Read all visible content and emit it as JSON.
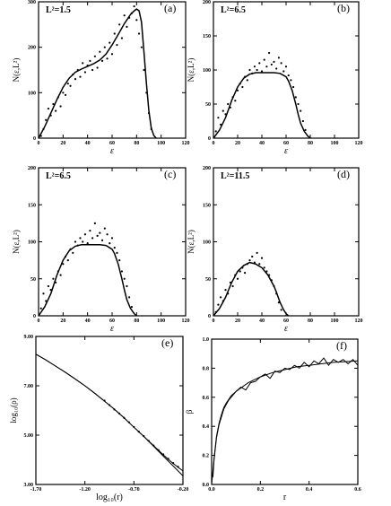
{
  "chart_data": [
    {
      "id": "a",
      "type": "scatter",
      "panel_label": "(a)",
      "annotation": "L²=1.5",
      "xlabel": "ε",
      "ylabel": "N(ε,L²)",
      "xlim": [
        0,
        120
      ],
      "ylim": [
        0,
        300
      ],
      "xticks": [
        0,
        20,
        40,
        60,
        80,
        100,
        120
      ],
      "yticks": [
        0,
        100,
        200,
        300
      ],
      "xtick_labels": [
        "0",
        "20",
        "40",
        "60",
        "80",
        "100",
        "120"
      ],
      "ytick_labels": [
        "0",
        "100",
        "200",
        "300"
      ],
      "series": [
        {
          "kind": "line",
          "x": [
            0,
            5,
            10,
            15,
            20,
            25,
            30,
            35,
            40,
            45,
            50,
            55,
            60,
            65,
            70,
            75,
            78,
            80,
            82,
            84,
            86,
            88,
            90,
            92,
            94,
            96
          ],
          "y": [
            0,
            25,
            55,
            85,
            112,
            132,
            145,
            152,
            158,
            164,
            172,
            185,
            205,
            228,
            252,
            272,
            280,
            284,
            280,
            255,
            190,
            120,
            60,
            22,
            6,
            0
          ]
        },
        {
          "kind": "points",
          "x": [
            2,
            4,
            6,
            8,
            10,
            12,
            14,
            16,
            18,
            20,
            22,
            24,
            26,
            28,
            30,
            32,
            34,
            36,
            38,
            40,
            42,
            44,
            46,
            48,
            50,
            52,
            54,
            56,
            58,
            60,
            62,
            64,
            66,
            68,
            70,
            72,
            74,
            76,
            78,
            80,
            82,
            84,
            86,
            88,
            90,
            92
          ],
          "y": [
            5,
            20,
            40,
            65,
            50,
            75,
            60,
            90,
            70,
            100,
            95,
            120,
            115,
            140,
            130,
            150,
            135,
            165,
            145,
            160,
            170,
            150,
            180,
            155,
            190,
            170,
            200,
            175,
            210,
            185,
            230,
            205,
            250,
            220,
            270,
            245,
            265,
            275,
            290,
            260,
            230,
            200,
            150,
            100,
            55,
            20
          ]
        }
      ]
    },
    {
      "id": "b",
      "type": "scatter",
      "panel_label": "(b)",
      "annotation": "L²=6.5",
      "xlabel": "ε",
      "ylabel": "N(ε,L²)",
      "xlim": [
        0,
        120
      ],
      "ylim": [
        0,
        200
      ],
      "xticks": [
        0,
        20,
        40,
        60,
        80,
        100,
        120
      ],
      "yticks": [
        0,
        50,
        100,
        150,
        200
      ],
      "xtick_labels": [
        "0",
        "20",
        "40",
        "60",
        "80",
        "100",
        "120"
      ],
      "ytick_labels": [
        "0",
        "50",
        "100",
        "150",
        "200"
      ],
      "series": [
        {
          "kind": "line",
          "x": [
            0,
            5,
            10,
            15,
            20,
            25,
            30,
            35,
            40,
            45,
            50,
            55,
            60,
            62,
            65,
            68,
            70,
            72,
            75,
            78,
            80
          ],
          "y": [
            0,
            12,
            30,
            55,
            75,
            88,
            94,
            96,
            96,
            96,
            96,
            95,
            90,
            84,
            70,
            50,
            35,
            22,
            10,
            3,
            0
          ]
        },
        {
          "kind": "points",
          "x": [
            2,
            4,
            6,
            8,
            10,
            12,
            14,
            16,
            18,
            20,
            22,
            24,
            26,
            28,
            30,
            32,
            34,
            36,
            38,
            40,
            42,
            44,
            46,
            48,
            50,
            52,
            54,
            56,
            58,
            60,
            62,
            64,
            66,
            68,
            70,
            72,
            74,
            76
          ],
          "y": [
            10,
            30,
            20,
            40,
            35,
            50,
            45,
            60,
            55,
            70,
            80,
            75,
            90,
            85,
            100,
            95,
            105,
            100,
            110,
            98,
            115,
            105,
            125,
            108,
            112,
            102,
            118,
            110,
            98,
            105,
            92,
            85,
            75,
            60,
            50,
            40,
            25,
            12
          ]
        }
      ]
    },
    {
      "id": "c",
      "type": "scatter",
      "panel_label": "(c)",
      "annotation": "L²=6.5",
      "xlabel": "ε",
      "ylabel": "N(ε,L²)",
      "xlim": [
        0,
        120
      ],
      "ylim": [
        0,
        200
      ],
      "xticks": [
        0,
        20,
        40,
        60,
        80,
        100,
        120
      ],
      "yticks": [
        0,
        50,
        100,
        150,
        200
      ],
      "xtick_labels": [
        "0",
        "20",
        "40",
        "60",
        "80",
        "100",
        "120"
      ],
      "ytick_labels": [
        "0",
        "50",
        "100",
        "150",
        "200"
      ],
      "series": [
        {
          "kind": "line",
          "x": [
            0,
            5,
            10,
            15,
            20,
            25,
            30,
            35,
            40,
            45,
            50,
            55,
            60,
            62,
            65,
            68,
            70,
            72,
            75,
            78,
            80
          ],
          "y": [
            0,
            12,
            30,
            55,
            75,
            88,
            94,
            96,
            96,
            96,
            96,
            95,
            90,
            84,
            70,
            50,
            35,
            22,
            10,
            3,
            0
          ]
        },
        {
          "kind": "points",
          "x": [
            2,
            4,
            6,
            8,
            10,
            12,
            14,
            16,
            18,
            20,
            22,
            24,
            26,
            28,
            30,
            32,
            34,
            36,
            38,
            40,
            42,
            44,
            46,
            48,
            50,
            52,
            54,
            56,
            58,
            60,
            62,
            64,
            66,
            68,
            70,
            72,
            74,
            76
          ],
          "y": [
            10,
            30,
            20,
            40,
            35,
            50,
            45,
            60,
            55,
            70,
            80,
            75,
            90,
            85,
            100,
            95,
            105,
            100,
            110,
            98,
            115,
            105,
            125,
            108,
            112,
            102,
            118,
            110,
            98,
            105,
            92,
            85,
            75,
            60,
            50,
            40,
            25,
            12
          ]
        }
      ]
    },
    {
      "id": "d",
      "type": "scatter",
      "panel_label": "(d)",
      "annotation": "L²=11.5",
      "xlabel": "ε",
      "ylabel": "N(ε,L²)",
      "xlim": [
        0,
        120
      ],
      "ylim": [
        0,
        200
      ],
      "xticks": [
        0,
        20,
        40,
        60,
        80,
        100,
        120
      ],
      "yticks": [
        0,
        50,
        100,
        150,
        200
      ],
      "xtick_labels": [
        "0",
        "20",
        "40",
        "60",
        "80",
        "100",
        "120"
      ],
      "ytick_labels": [
        "0",
        "50",
        "100",
        "150",
        "200"
      ],
      "series": [
        {
          "kind": "line",
          "x": [
            0,
            5,
            10,
            15,
            20,
            25,
            30,
            35,
            40,
            45,
            50,
            52,
            55,
            58,
            60,
            62
          ],
          "y": [
            0,
            10,
            25,
            45,
            60,
            68,
            72,
            70,
            65,
            55,
            40,
            32,
            18,
            8,
            3,
            0
          ]
        },
        {
          "kind": "points",
          "x": [
            2,
            4,
            6,
            8,
            10,
            12,
            14,
            16,
            18,
            20,
            22,
            24,
            26,
            28,
            30,
            32,
            34,
            36,
            38,
            40,
            42,
            44,
            46,
            48,
            50,
            52,
            54,
            56
          ],
          "y": [
            5,
            15,
            25,
            20,
            35,
            30,
            45,
            40,
            55,
            50,
            60,
            65,
            58,
            70,
            75,
            80,
            72,
            85,
            70,
            78,
            65,
            60,
            55,
            48,
            40,
            30,
            18,
            8
          ]
        }
      ]
    },
    {
      "id": "e",
      "type": "line",
      "panel_label": "(e)",
      "xlabel": "log₁₀(r)",
      "ylabel": "log₁₀(ρ)",
      "xlim": [
        -1.7,
        -0.2
      ],
      "ylim": [
        3.0,
        9.0
      ],
      "xticks": [
        -1.7,
        -1.2,
        -0.7,
        -0.2
      ],
      "yticks": [
        3.0,
        5.0,
        7.0,
        9.0
      ],
      "xtick_labels": [
        "-1.70",
        "-1.20",
        "-0.70",
        "-0.20"
      ],
      "ytick_labels": [
        "3.00",
        "5.00",
        "7.00",
        "9.00"
      ],
      "series": [
        {
          "kind": "line",
          "x": [
            -1.7,
            -1.6,
            -1.5,
            -1.4,
            -1.3,
            -1.2,
            -1.1,
            -1.0,
            -0.9,
            -0.8,
            -0.7,
            -0.6,
            -0.5,
            -0.4,
            -0.3,
            -0.2
          ],
          "y": [
            8.28,
            8.05,
            7.8,
            7.55,
            7.28,
            7.0,
            6.7,
            6.38,
            6.05,
            5.7,
            5.32,
            4.95,
            4.55,
            4.15,
            3.75,
            3.35
          ]
        },
        {
          "kind": "line",
          "x": [
            -1.7,
            -1.6,
            -1.5,
            -1.4,
            -1.3,
            -1.2,
            -1.1,
            -1.0,
            -0.9,
            -0.8,
            -0.7,
            -0.6,
            -0.5,
            -0.4,
            -0.3,
            -0.25,
            -0.2
          ],
          "y": [
            8.28,
            8.05,
            7.8,
            7.55,
            7.28,
            7.0,
            6.7,
            6.38,
            6.05,
            5.7,
            5.32,
            4.95,
            4.58,
            4.2,
            3.85,
            3.7,
            3.55
          ]
        },
        {
          "kind": "points",
          "x": [
            -1.0,
            -0.95,
            -0.9,
            -0.85,
            -0.8,
            -0.75,
            -0.7,
            -0.65,
            -0.6,
            -0.55,
            -0.5,
            -0.45,
            -0.4,
            -0.35,
            -0.3,
            -0.25
          ],
          "y": [
            6.4,
            6.22,
            6.04,
            5.88,
            5.7,
            5.52,
            5.33,
            5.14,
            4.96,
            4.77,
            4.58,
            4.39,
            4.22,
            4.04,
            3.87,
            3.72
          ]
        }
      ]
    },
    {
      "id": "f",
      "type": "line",
      "panel_label": "(f)",
      "xlabel": "r",
      "ylabel": "β",
      "xlim": [
        0.0,
        0.6
      ],
      "ylim": [
        0.0,
        1.0
      ],
      "xticks": [
        0.0,
        0.2,
        0.4,
        0.6
      ],
      "yticks": [
        0.0,
        0.2,
        0.4,
        0.6,
        0.8,
        1.0
      ],
      "xtick_labels": [
        "0.0",
        "0.2",
        "0.4",
        "0.6"
      ],
      "ytick_labels": [
        "0.0",
        "0.2",
        "0.4",
        "0.6",
        "0.8",
        "1.0"
      ],
      "series": [
        {
          "kind": "line",
          "x": [
            0.005,
            0.01,
            0.02,
            0.03,
            0.05,
            0.07,
            0.1,
            0.15,
            0.2,
            0.25,
            0.3,
            0.35,
            0.4,
            0.45,
            0.5,
            0.55,
            0.6
          ],
          "y": [
            0.05,
            0.17,
            0.32,
            0.41,
            0.52,
            0.58,
            0.64,
            0.7,
            0.74,
            0.77,
            0.79,
            0.81,
            0.82,
            0.83,
            0.84,
            0.845,
            0.85
          ]
        },
        {
          "kind": "line",
          "x": [
            0.0,
            0.01,
            0.02,
            0.03,
            0.04,
            0.05,
            0.06,
            0.08,
            0.1,
            0.12,
            0.14,
            0.16,
            0.18,
            0.2,
            0.22,
            0.24,
            0.26,
            0.28,
            0.3,
            0.32,
            0.34,
            0.36,
            0.38,
            0.4,
            0.42,
            0.44,
            0.46,
            0.48,
            0.5,
            0.52,
            0.54,
            0.56,
            0.58,
            0.6
          ],
          "y": [
            0.0,
            0.18,
            0.33,
            0.42,
            0.48,
            0.53,
            0.56,
            0.61,
            0.64,
            0.67,
            0.65,
            0.7,
            0.71,
            0.74,
            0.76,
            0.73,
            0.78,
            0.77,
            0.8,
            0.79,
            0.82,
            0.8,
            0.84,
            0.81,
            0.85,
            0.83,
            0.87,
            0.82,
            0.86,
            0.84,
            0.86,
            0.83,
            0.86,
            0.82
          ]
        }
      ]
    }
  ]
}
